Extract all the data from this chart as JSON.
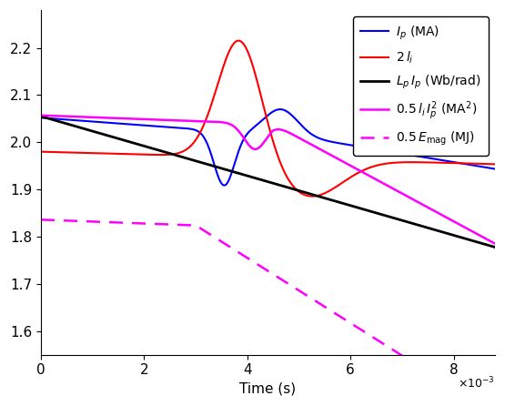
{
  "xlim": [
    0,
    0.0088
  ],
  "ylim": [
    1.55,
    2.28
  ],
  "xlabel": "Time (s)",
  "yticks": [
    1.6,
    1.7,
    1.8,
    1.9,
    2.0,
    2.1,
    2.2
  ],
  "xticks": [
    0,
    0.002,
    0.004,
    0.006,
    0.008
  ],
  "xtick_labels": [
    "0",
    "2",
    "4",
    "6",
    "8"
  ],
  "background_color": "#ffffff"
}
